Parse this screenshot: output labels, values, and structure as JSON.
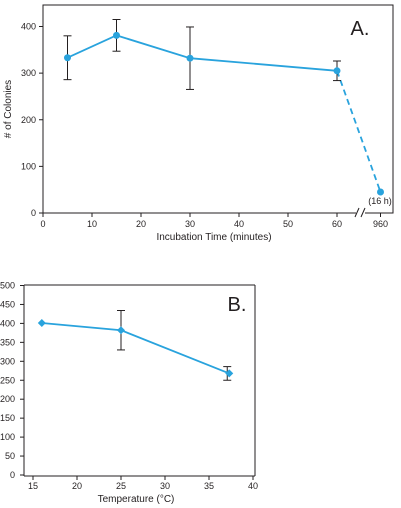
{
  "chart_data": [
    {
      "type": "line",
      "panel_label": "A.",
      "xlabel": "Incubation Time (minutes)",
      "ylabel": "# of Colonies",
      "xticks": [
        "0",
        "10",
        "20",
        "30",
        "40",
        "50",
        "60",
        "960"
      ],
      "yticks": [
        "0",
        "100",
        "200",
        "300",
        "400"
      ],
      "xlim": [
        0,
        60
      ],
      "ylim": [
        0,
        400
      ],
      "axis_break": "between 60 and 960",
      "series": [
        {
          "x": [
            5,
            15,
            30,
            60
          ],
          "y": [
            333,
            381,
            332,
            305
          ],
          "error": [
            47,
            34,
            67,
            21
          ],
          "line_style": "solid",
          "marker": "circle"
        },
        {
          "x": [
            60,
            960
          ],
          "y": [
            305,
            45
          ],
          "line_style": "dashed",
          "marker": "circle"
        }
      ],
      "annotations": [
        {
          "text": "(16 h)",
          "x": 960,
          "y": 45
        }
      ],
      "color": "#29a3dd"
    },
    {
      "type": "line",
      "panel_label": "B.",
      "xlabel": "Temperature (°C)",
      "ylabel": "",
      "xticks": [
        "15",
        "20",
        "25",
        "30",
        "35",
        "40"
      ],
      "yticks": [
        "0",
        "50",
        "100",
        "150",
        "200",
        "250",
        "300",
        "350",
        "400",
        "450",
        "500"
      ],
      "xlim": [
        15,
        40
      ],
      "ylim": [
        0,
        500
      ],
      "series": [
        {
          "x": [
            16,
            25,
            37.3
          ],
          "y": [
            401,
            382,
            268
          ],
          "error": [
            0,
            52,
            18
          ],
          "marker": "diamond"
        }
      ],
      "color": "#29a3dd"
    }
  ]
}
